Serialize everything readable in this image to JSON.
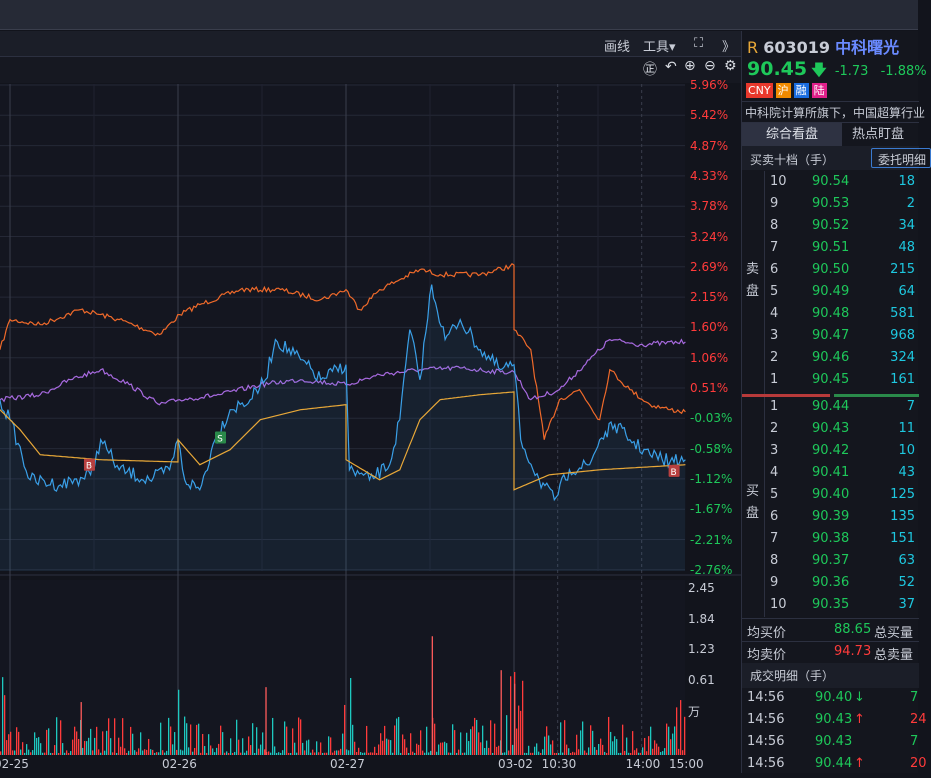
{
  "toolbar": {
    "draw": "画线",
    "tools": "工具▾",
    "fullscreen_icon": "⛶",
    "collapse_icon": "》"
  },
  "toolbar2": {
    "speed_icon": "㊣",
    "undo_icon": "↶",
    "zoom_in_icon": "⊕",
    "zoom_out_icon": "⊖",
    "settings_icon": "⚙"
  },
  "stock": {
    "prefix": "R",
    "code": "603019",
    "name": "中科曙光",
    "price": "90.45",
    "arrow": "🡇",
    "change": "-1.73",
    "change_pct": "-1.88%",
    "tags": [
      {
        "t": "CNY",
        "c": "#e8382c"
      },
      {
        "t": "沪",
        "c": "#f08a00"
      },
      {
        "t": "融",
        "c": "#1a6de0"
      },
      {
        "t": "陆",
        "c": "#e0208a"
      }
    ],
    "desc": "中科院计算所旗下，中国超算行业"
  },
  "tabs": [
    "综合看盘",
    "热点盯盘"
  ],
  "orderbook": {
    "title": "买卖十档（手）",
    "button": "委托明细",
    "sell_label": "卖盘",
    "buy_label": "买盘",
    "sell": [
      [
        "10",
        "90.54",
        "18"
      ],
      [
        "9",
        "90.53",
        "2"
      ],
      [
        "8",
        "90.52",
        "34"
      ],
      [
        "7",
        "90.51",
        "48"
      ],
      [
        "6",
        "90.50",
        "215"
      ],
      [
        "5",
        "90.49",
        "64"
      ],
      [
        "4",
        "90.48",
        "581"
      ],
      [
        "3",
        "90.47",
        "968"
      ],
      [
        "2",
        "90.46",
        "324"
      ],
      [
        "1",
        "90.45",
        "161"
      ]
    ],
    "buy": [
      [
        "1",
        "90.44",
        "7"
      ],
      [
        "2",
        "90.43",
        "11"
      ],
      [
        "3",
        "90.42",
        "10"
      ],
      [
        "4",
        "90.41",
        "43"
      ],
      [
        "5",
        "90.40",
        "125"
      ],
      [
        "6",
        "90.39",
        "135"
      ],
      [
        "7",
        "90.38",
        "151"
      ],
      [
        "8",
        "90.37",
        "63"
      ],
      [
        "9",
        "90.36",
        "52"
      ],
      [
        "10",
        "90.35",
        "37"
      ]
    ]
  },
  "summary": {
    "avg_buy_label": "均买价",
    "avg_buy": "88.65",
    "total_buy_label": "总买量",
    "avg_sell_label": "均卖价",
    "avg_sell": "94.73",
    "total_sell_label": "总卖量"
  },
  "trades": {
    "title": "成交明细（手）",
    "rows": [
      [
        "14:56",
        "90.40",
        "↓",
        "7"
      ],
      [
        "14:56",
        "90.43",
        "↑",
        "24"
      ],
      [
        "14:56",
        "90.43",
        "",
        "7"
      ],
      [
        "14:56",
        "90.44",
        "↑",
        "20"
      ]
    ]
  },
  "chart_data": {
    "type": "line",
    "ylim_pct": [
      -2.76,
      5.96
    ],
    "y_ticks": [
      "5.96%",
      "5.42%",
      "4.87%",
      "4.33%",
      "3.78%",
      "3.24%",
      "2.69%",
      "2.15%",
      "1.60%",
      "1.06%",
      "0.51%",
      "-0.03%",
      "-0.58%",
      "-1.12%",
      "-1.67%",
      "-2.21%",
      "-2.76%"
    ],
    "vol_ticks": [
      "2.45",
      "1.84",
      "1.23",
      "0.61",
      "万"
    ],
    "x_labels": [
      {
        "t": "02-25",
        "d": 0
      },
      {
        "t": "02-26",
        "d": 1
      },
      {
        "t": "02-27",
        "d": 2
      },
      {
        "t": "03-02",
        "d": 3
      },
      {
        "t": "10:30",
        "d": 3.26
      },
      {
        "t": "14:00",
        "d": 3.76
      },
      {
        "t": "15:00",
        "d": 4.02
      }
    ],
    "series": [
      {
        "name": "stock",
        "color": "#f06a2a",
        "x": [
          -0.06,
          0,
          0.18,
          0.42,
          0.65,
          0.89,
          1.01,
          1.13,
          1.37,
          1.61,
          1.85,
          2.0,
          2.08,
          2.2,
          2.32,
          2.44,
          2.56,
          2.8,
          3.0,
          3.0,
          3.1,
          3.18,
          3.27,
          3.39,
          3.51,
          3.57,
          3.69,
          3.81,
          3.93,
          4.02
        ],
        "y": [
          1.2,
          1.74,
          1.65,
          1.92,
          1.74,
          1.47,
          1.83,
          2.01,
          2.28,
          2.28,
          2.1,
          2.28,
          1.92,
          2.28,
          2.46,
          2.64,
          2.55,
          2.55,
          2.72,
          1.56,
          1.2,
          -0.42,
          0.3,
          0.48,
          -0.06,
          0.84,
          0.48,
          0.21,
          0.12,
          0.08
        ]
      },
      {
        "name": "index",
        "color": "#a86ae0",
        "x": [
          -0.06,
          0.18,
          0.36,
          0.54,
          0.71,
          0.89,
          1.01,
          1.25,
          1.49,
          1.73,
          2.0,
          2.2,
          2.44,
          2.68,
          2.92,
          3.0,
          3.1,
          3.27,
          3.45,
          3.57,
          3.75,
          4.02
        ],
        "y": [
          0.3,
          0.39,
          0.66,
          0.84,
          0.57,
          0.21,
          0.3,
          0.39,
          0.57,
          0.66,
          0.57,
          0.75,
          0.84,
          0.87,
          0.8,
          0.8,
          0.3,
          0.48,
          1.02,
          1.38,
          1.29,
          1.34
        ]
      },
      {
        "name": "intraday",
        "color": "#3aa0e8",
        "x": [
          -0.06,
          0,
          0.12,
          0.3,
          0.48,
          0.54,
          0.65,
          0.83,
          0.95,
          1.0,
          1.04,
          1.13,
          1.22,
          1.31,
          1.43,
          1.52,
          1.52,
          1.58,
          1.73,
          1.85,
          2.0,
          2.02,
          2.14,
          2.26,
          2.32,
          2.38,
          2.44,
          2.51,
          2.59,
          2.68,
          2.8,
          2.92,
          3.0,
          3.04,
          3.15,
          3.24,
          3.33,
          3.45,
          3.51,
          3.6,
          3.69,
          3.81,
          3.93,
          4.02
        ],
        "y": [
          0.3,
          -0.06,
          -1.14,
          -1.23,
          -1.05,
          -0.42,
          -0.96,
          -1.14,
          -0.96,
          -0.42,
          -1.14,
          -1.32,
          -0.42,
          0.12,
          0.3,
          0.66,
          0.66,
          1.38,
          1.02,
          0.66,
          0.93,
          -0.96,
          -1.14,
          -0.87,
          -0.06,
          1.56,
          0.66,
          2.37,
          1.38,
          1.74,
          1.2,
          0.84,
          0.93,
          -0.42,
          -1.14,
          -1.5,
          -0.96,
          -0.87,
          -0.42,
          -0.15,
          -0.42,
          -0.69,
          -0.81,
          -0.78
        ]
      },
      {
        "name": "average",
        "color": "#e8a838",
        "x": [
          -0.06,
          0.06,
          0.18,
          0.54,
          1.0,
          1.0,
          1.13,
          1.31,
          1.49,
          1.73,
          2.0,
          2.0,
          2.2,
          2.32,
          2.44,
          2.56,
          2.8,
          3.0,
          3.0,
          3.21,
          3.51,
          4.02
        ],
        "y": [
          0.12,
          -0.24,
          -0.69,
          -0.78,
          -0.82,
          -0.42,
          -0.87,
          -0.6,
          -0.06,
          0.12,
          0.21,
          -0.78,
          -1.14,
          -0.96,
          -0.06,
          0.3,
          0.39,
          0.44,
          -1.32,
          -1.05,
          -0.96,
          -0.87
        ]
      }
    ],
    "markers": [
      {
        "t": "B",
        "d": 0.47,
        "pct": -0.87,
        "c": "#b84040"
      },
      {
        "t": "S",
        "d": 1.25,
        "pct": -0.38,
        "c": "#2a8a4a"
      },
      {
        "t": "B",
        "d": 3.95,
        "pct": -0.98,
        "c": "#b84040"
      }
    ],
    "volume_spikes": [
      {
        "d": 2.51,
        "v": 1.75
      },
      {
        "d": 2.92,
        "v": 1.25
      },
      {
        "d": 1.52,
        "v": 1.0
      },
      {
        "d": 3.0,
        "v": 1.05
      },
      {
        "d": 0.42,
        "v": 0.78
      }
    ]
  }
}
